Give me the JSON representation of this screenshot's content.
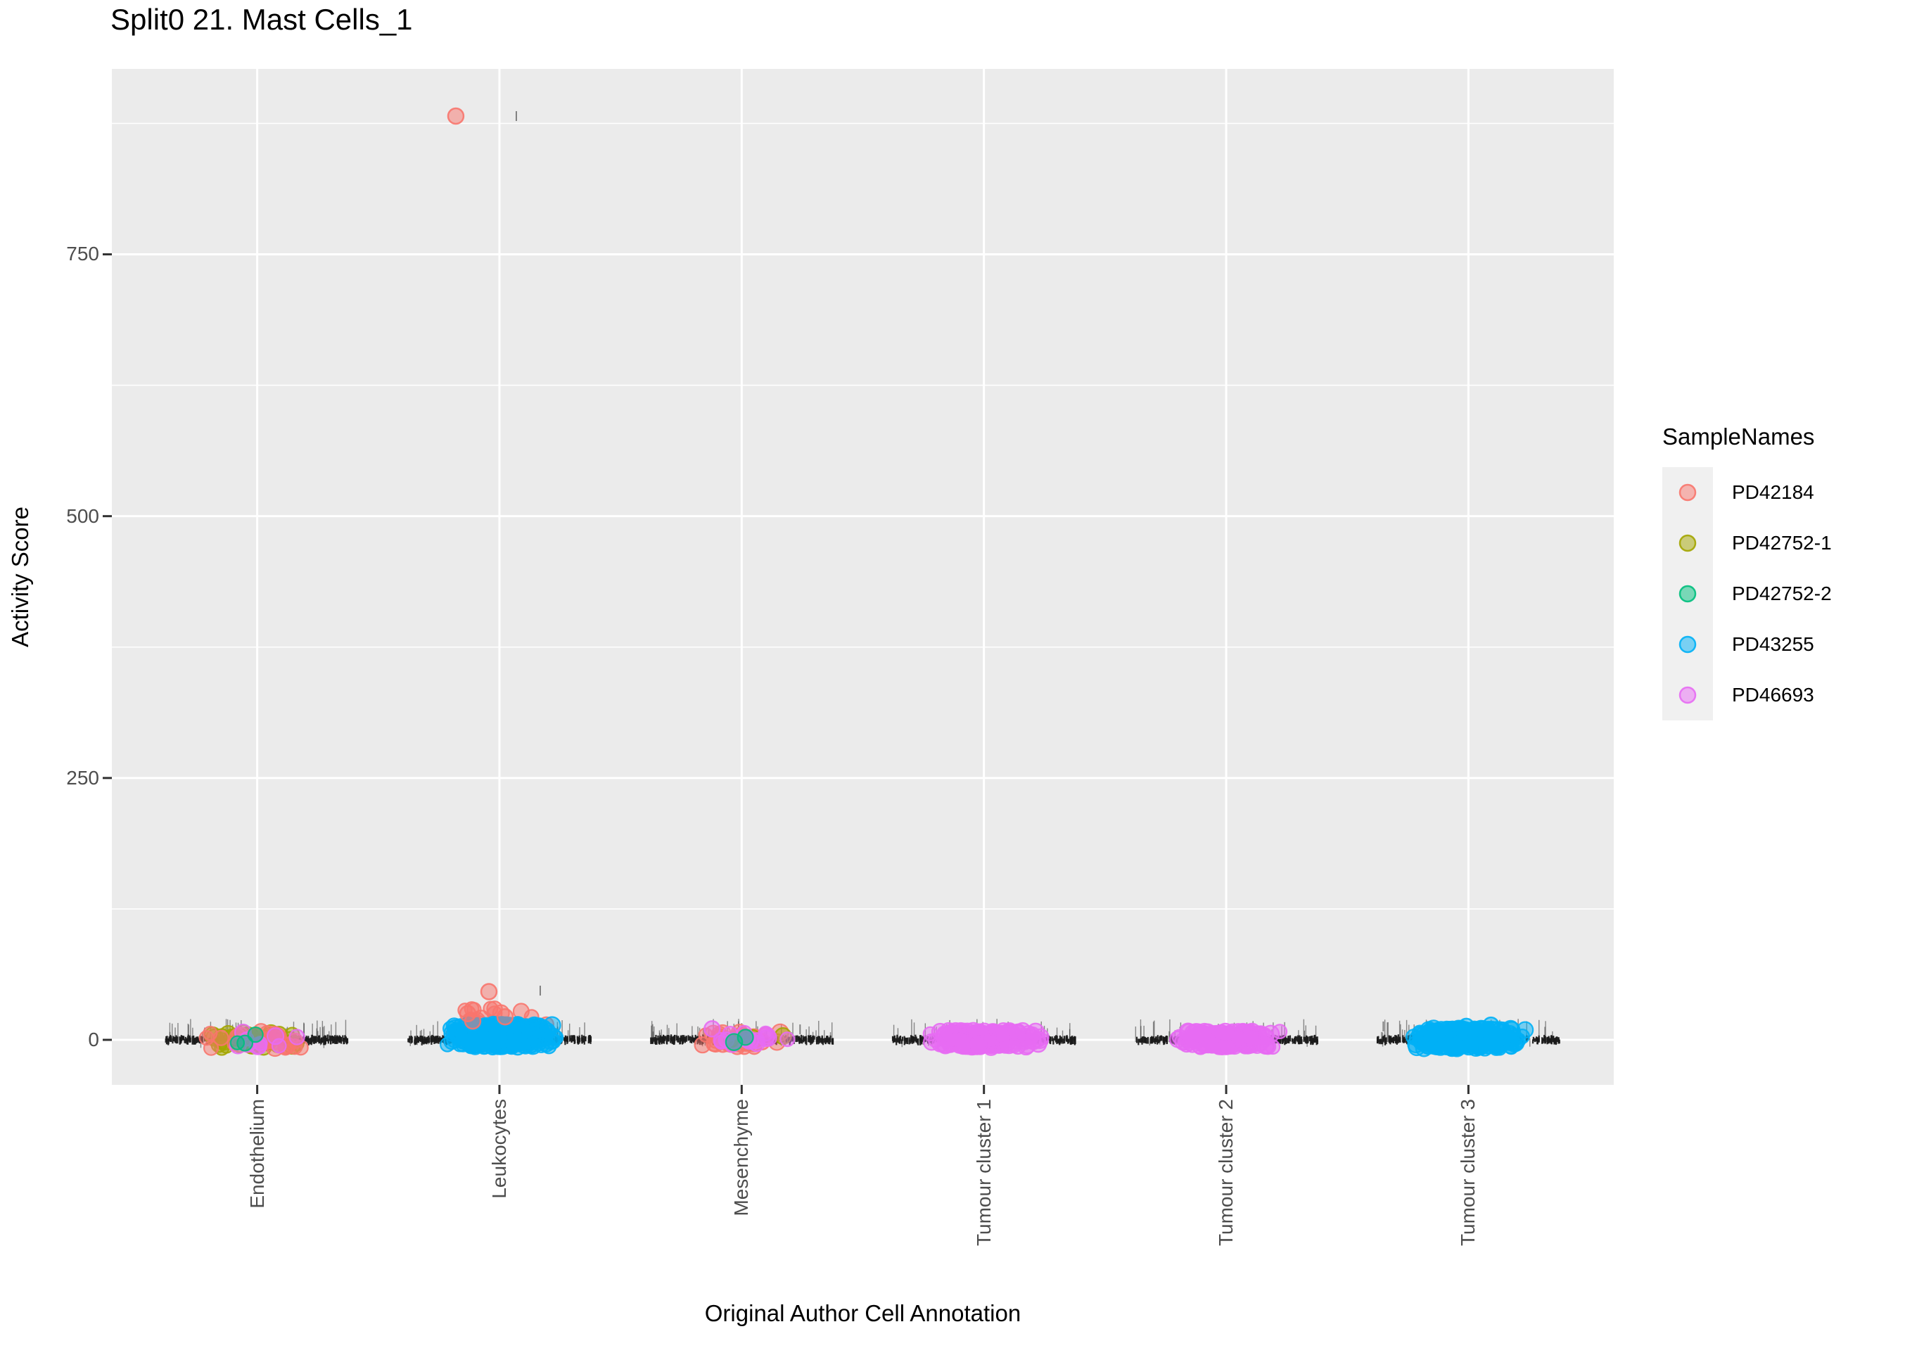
{
  "chart_data": {
    "type": "scatter",
    "title": "Split0 21. Mast Cells_1",
    "xlabel": "Original Author Cell Annotation",
    "ylabel": "Activity Score",
    "y_ticks": [
      0,
      250,
      500,
      750
    ],
    "y_minor_gridlines": [
      125,
      375,
      625,
      875
    ],
    "ylim": [
      -43,
      927
    ],
    "grid": "white major and minor gridlines on gray panel",
    "legend_position": "right",
    "legend": {
      "title": "SampleNames",
      "entries": [
        {
          "label": "PD42184",
          "color": "#F8766D"
        },
        {
          "label": "PD42752-1",
          "color": "#A3A500"
        },
        {
          "label": "PD42752-2",
          "color": "#00BF7D"
        },
        {
          "label": "PD43255",
          "color": "#00B0F6"
        },
        {
          "label": "PD46693",
          "color": "#E76BF3"
        }
      ]
    },
    "point_alpha": 0.5,
    "outlier": {
      "category": "Leukocytes",
      "sample": "PD42184",
      "value": 882
    },
    "categories": [
      {
        "label": "Endothelium",
        "band": {
          "half_width": 130,
          "ticks": 320,
          "spikes": 50
        },
        "clusters": [
          {
            "sample": "PD42752-1",
            "n": 42,
            "half_width": 80,
            "y_range": [
              -8,
              7
            ]
          },
          {
            "sample": "PD42184",
            "n": 32,
            "half_width": 76,
            "y_range": [
              -8,
              8
            ]
          },
          {
            "sample": "PD46693",
            "n": 10,
            "half_width": 70,
            "y_range": [
              -6,
              8
            ]
          },
          {
            "sample": "PD42752-2",
            "n": 3,
            "half_width": 40,
            "y_range": [
              -4,
              5
            ]
          }
        ],
        "singles": [],
        "black_singles": []
      },
      {
        "label": "Leukocytes",
        "band": {
          "half_width": 130,
          "ticks": 320,
          "spikes": 50
        },
        "clusters": [
          {
            "sample": "PD42184",
            "n": 42,
            "half_width": 66,
            "y_range": [
              -4,
              30
            ],
            "bias": 2.2
          },
          {
            "sample": "PD46693",
            "n": 8,
            "half_width": 60,
            "y_range": [
              -5,
              12
            ]
          },
          {
            "sample": "PD43255",
            "n": 260,
            "half_width": 78,
            "y_range": [
              -7,
              15
            ]
          }
        ],
        "singles": [
          {
            "sample": "PD42184",
            "dx": -62,
            "y": 882
          },
          {
            "sample": "PD42184",
            "dx": -15,
            "y": 46
          },
          {
            "sample": "PD42184",
            "dx": -45,
            "y": 25
          },
          {
            "sample": "PD42184",
            "dx": -38,
            "y": 18
          },
          {
            "sample": "PD42184",
            "dx": 8,
            "y": 22
          }
        ],
        "black_singles": [
          {
            "dx": 24,
            "y": 882
          },
          {
            "dx": 58,
            "y": 47
          }
        ]
      },
      {
        "label": "Mesenchyme",
        "band": {
          "half_width": 130,
          "ticks": 320,
          "spikes": 50
        },
        "clusters": [
          {
            "sample": "PD42184",
            "n": 36,
            "half_width": 76,
            "y_range": [
              -7,
              7
            ]
          },
          {
            "sample": "PD42752-1",
            "n": 4,
            "half_width": 60,
            "y_range": [
              -4,
              4
            ]
          },
          {
            "sample": "PD46693",
            "n": 18,
            "half_width": 70,
            "y_range": [
              -5,
              8
            ]
          },
          {
            "sample": "PD42752-2",
            "n": 2,
            "half_width": 25,
            "y_range": [
              -3,
              3
            ]
          }
        ],
        "singles": [
          {
            "sample": "PD46693",
            "dx": -42,
            "y": 10.5
          }
        ],
        "black_singles": [
          {
            "dx": 83,
            "y": 10
          }
        ]
      },
      {
        "label": "Tumour cluster 1",
        "band": {
          "half_width": 130,
          "ticks": 320,
          "spikes": 50
        },
        "clusters": [
          {
            "sample": "PD46693",
            "n": 230,
            "half_width": 82,
            "y_range": [
              -7,
              9
            ]
          }
        ],
        "singles": [],
        "black_singles": []
      },
      {
        "label": "Tumour cluster 2",
        "band": {
          "half_width": 130,
          "ticks": 320,
          "spikes": 50
        },
        "clusters": [
          {
            "sample": "PD46693",
            "n": 190,
            "half_width": 76,
            "y_range": [
              -7,
              8
            ]
          }
        ],
        "singles": [],
        "black_singles": []
      },
      {
        "label": "Tumour cluster 3",
        "band": {
          "half_width": 130,
          "ticks": 320,
          "spikes": 50
        },
        "clusters": [
          {
            "sample": "PD43255",
            "n": 230,
            "half_width": 82,
            "y_range": [
              -8,
              11
            ]
          }
        ],
        "singles": [
          {
            "sample": "PD43255",
            "dx": -3,
            "y": 12.8
          },
          {
            "sample": "PD43255",
            "dx": 32,
            "y": 14
          },
          {
            "sample": "PD43255",
            "dx": 60,
            "y": 10.7
          }
        ],
        "black_singles": [
          {
            "dx": -121,
            "y": 12.8
          },
          {
            "dx": -31,
            "y": 9.4
          },
          {
            "dx": 13,
            "y": 12
          }
        ]
      }
    ]
  },
  "colors": {
    "panel_bg": "#EBEBEB",
    "gridline": "#FFFFFF",
    "axis_text": "#4D4D4D",
    "tick_mark": "#333333",
    "jitter_black": "#1A1A1A",
    "legend_key_bg": "#F0F0F0"
  }
}
